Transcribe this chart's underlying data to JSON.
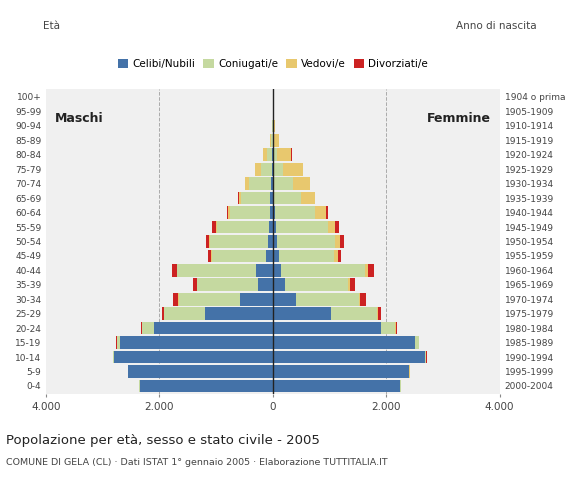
{
  "age_groups": [
    "0-4",
    "5-9",
    "10-14",
    "15-19",
    "20-24",
    "25-29",
    "30-34",
    "35-39",
    "40-44",
    "45-49",
    "50-54",
    "55-59",
    "60-64",
    "65-69",
    "70-74",
    "75-79",
    "80-84",
    "85-89",
    "90-94",
    "95-99",
    "100+"
  ],
  "birth_years": [
    "2000-2004",
    "1995-1999",
    "1990-1994",
    "1985-1989",
    "1980-1984",
    "1975-1979",
    "1970-1974",
    "1965-1969",
    "1960-1964",
    "1955-1959",
    "1950-1954",
    "1945-1949",
    "1940-1944",
    "1935-1939",
    "1930-1934",
    "1925-1929",
    "1920-1924",
    "1915-1919",
    "1910-1914",
    "1905-1909",
    "1904 o prima"
  ],
  "males": {
    "celibi": [
      2350,
      2550,
      2800,
      2700,
      2100,
      1200,
      580,
      260,
      290,
      120,
      90,
      70,
      55,
      45,
      25,
      15,
      8,
      3,
      0,
      0,
      0
    ],
    "coniugati": [
      5,
      8,
      15,
      55,
      200,
      720,
      1080,
      1080,
      1400,
      960,
      1020,
      920,
      700,
      510,
      390,
      200,
      90,
      30,
      15,
      0,
      0
    ],
    "vedovi": [
      3,
      3,
      3,
      3,
      3,
      3,
      5,
      5,
      8,
      10,
      18,
      20,
      28,
      48,
      80,
      100,
      70,
      20,
      5,
      0,
      0
    ],
    "divorziati": [
      3,
      3,
      3,
      3,
      18,
      38,
      90,
      72,
      82,
      52,
      60,
      62,
      18,
      10,
      5,
      3,
      0,
      0,
      0,
      0,
      0
    ]
  },
  "females": {
    "nubili": [
      2250,
      2400,
      2680,
      2500,
      1900,
      1020,
      400,
      210,
      150,
      100,
      80,
      48,
      38,
      28,
      18,
      8,
      4,
      2,
      0,
      0,
      0
    ],
    "coniugate": [
      5,
      8,
      25,
      75,
      260,
      820,
      1120,
      1120,
      1480,
      980,
      1020,
      920,
      700,
      460,
      340,
      165,
      62,
      20,
      10,
      0,
      0
    ],
    "vedove": [
      3,
      3,
      3,
      8,
      8,
      12,
      18,
      28,
      48,
      62,
      78,
      120,
      200,
      250,
      300,
      360,
      260,
      82,
      30,
      5,
      0
    ],
    "divorziate": [
      3,
      3,
      3,
      3,
      18,
      52,
      102,
      82,
      102,
      62,
      70,
      72,
      28,
      10,
      5,
      3,
      3,
      0,
      0,
      0,
      0
    ]
  },
  "colors": {
    "celibi": "#4472a8",
    "coniugati": "#c5d9a0",
    "vedovi": "#e8c86e",
    "divorziati": "#cc2222"
  },
  "xlim": 4000,
  "title": "Popolazione per età, sesso e stato civile - 2005",
  "subtitle": "COMUNE DI GELA (CL) · Dati ISTAT 1° gennaio 2005 · Elaborazione TUTTITALIA.IT",
  "xlabel_left": "Maschi",
  "xlabel_right": "Femmine",
  "ylabel_left": "Età",
  "ylabel_right": "Anno di nascita",
  "xtick_labels": [
    "4.000",
    "2.000",
    "0",
    "2.000",
    "4.000"
  ],
  "background_color": "#ffffff",
  "plot_bg": "#f0f0f0"
}
